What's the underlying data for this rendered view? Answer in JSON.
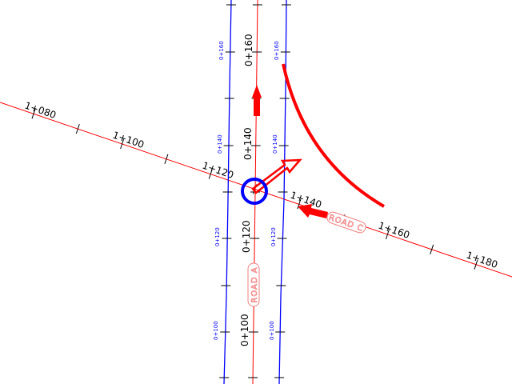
{
  "colors": {
    "alignment": "#ff0000",
    "offset": "#0000ff",
    "label_text": "#000000",
    "road_tag": "#f08080"
  },
  "road_a": {
    "name": "ROAD A",
    "stations": [
      "0+160",
      "0+140",
      "0+120",
      "0+100"
    ],
    "left_offset_stations": [
      "0+160",
      "0+140",
      "0+120",
      "0+100"
    ],
    "right_offset_stations": [
      "0+160",
      "0+140",
      "0+120",
      "0+100"
    ]
  },
  "road_c": {
    "name": "ROAD C",
    "stations": [
      "1+080",
      "1+100",
      "1+120",
      "1+140",
      "1+160",
      "1+180"
    ]
  },
  "icons": [
    "intersection-circle",
    "direction-arrow-up",
    "direction-arrow-northeast",
    "direction-arrow-west",
    "curb-return-curve"
  ]
}
